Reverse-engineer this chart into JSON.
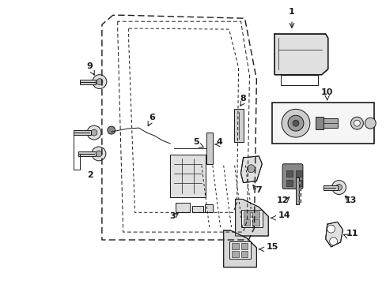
{
  "bg_color": "#ffffff",
  "fig_width": 4.89,
  "fig_height": 3.6,
  "dpi": 100,
  "gray": "#1a1a1a"
}
